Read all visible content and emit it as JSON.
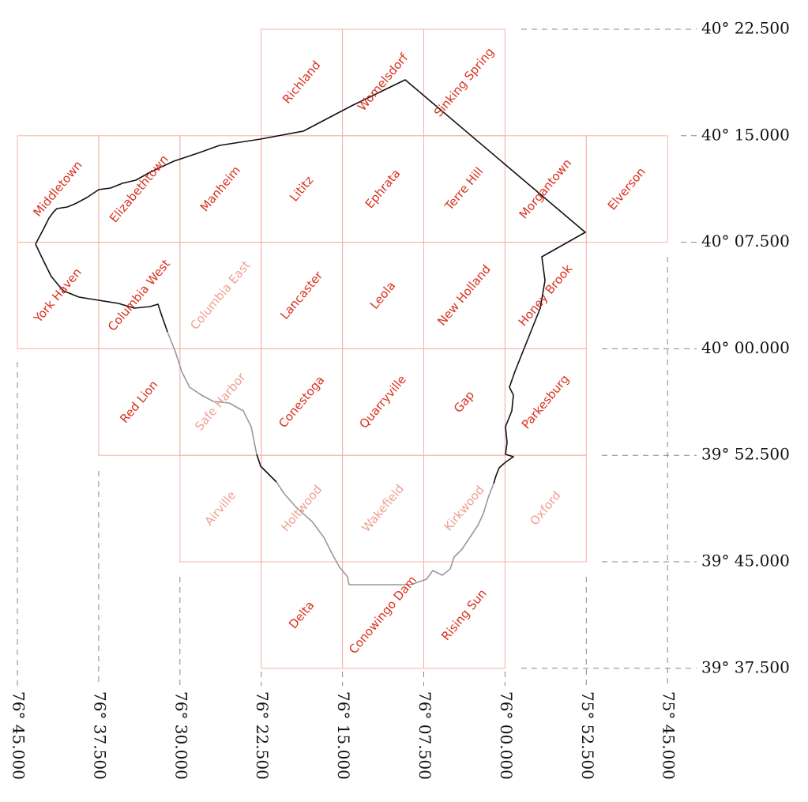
{
  "colors": {
    "grid": "#f4b3aa",
    "label_strong": "#d9301e",
    "label_faded": "#eea093",
    "boundary": "#111111",
    "axis_text": "#111111"
  },
  "quadrangles": [
    {
      "name": "Richland",
      "col": 3,
      "row": 0,
      "faded": false
    },
    {
      "name": "Womelsdorf",
      "col": 4,
      "row": 0,
      "faded": false
    },
    {
      "name": "Sinking Spring",
      "col": 5,
      "row": 0,
      "faded": false
    },
    {
      "name": "Middletown",
      "col": 0,
      "row": 1,
      "faded": false
    },
    {
      "name": "Elizabethtown",
      "col": 1,
      "row": 1,
      "faded": false
    },
    {
      "name": "Manheim",
      "col": 2,
      "row": 1,
      "faded": false
    },
    {
      "name": "Lititz",
      "col": 3,
      "row": 1,
      "faded": false
    },
    {
      "name": "Ephrata",
      "col": 4,
      "row": 1,
      "faded": false
    },
    {
      "name": "Terre Hill",
      "col": 5,
      "row": 1,
      "faded": false
    },
    {
      "name": "Morgantown",
      "col": 6,
      "row": 1,
      "faded": false
    },
    {
      "name": "Elverson",
      "col": 7,
      "row": 1,
      "faded": false
    },
    {
      "name": "York Haven",
      "col": 0,
      "row": 2,
      "faded": false
    },
    {
      "name": "Columbia West",
      "col": 1,
      "row": 2,
      "faded": false
    },
    {
      "name": "Columbia East",
      "col": 2,
      "row": 2,
      "faded": true
    },
    {
      "name": "Lancaster",
      "col": 3,
      "row": 2,
      "faded": false
    },
    {
      "name": "Leola",
      "col": 4,
      "row": 2,
      "faded": false
    },
    {
      "name": "New Holland",
      "col": 5,
      "row": 2,
      "faded": false
    },
    {
      "name": "Honey Brook",
      "col": 6,
      "row": 2,
      "faded": false
    },
    {
      "name": "Red Lion",
      "col": 1,
      "row": 3,
      "faded": false
    },
    {
      "name": "Safe Harbor",
      "col": 2,
      "row": 3,
      "faded": true
    },
    {
      "name": "Conestoga",
      "col": 3,
      "row": 3,
      "faded": false
    },
    {
      "name": "Quarryville",
      "col": 4,
      "row": 3,
      "faded": false
    },
    {
      "name": "Gap",
      "col": 5,
      "row": 3,
      "faded": false
    },
    {
      "name": "Parkesburg",
      "col": 6,
      "row": 3,
      "faded": false
    },
    {
      "name": "Airville",
      "col": 2,
      "row": 4,
      "faded": true
    },
    {
      "name": "Holtwood",
      "col": 3,
      "row": 4,
      "faded": true
    },
    {
      "name": "Wakefield",
      "col": 4,
      "row": 4,
      "faded": true
    },
    {
      "name": "Kirkwood",
      "col": 5,
      "row": 4,
      "faded": true
    },
    {
      "name": "Oxford",
      "col": 6,
      "row": 4,
      "faded": true
    },
    {
      "name": "Delta",
      "col": 3,
      "row": 5,
      "faded": false
    },
    {
      "name": "Conowingo Dam",
      "col": 4,
      "row": 5,
      "faded": false
    },
    {
      "name": "Rising Sun",
      "col": 5,
      "row": 5,
      "faded": false
    }
  ],
  "latitude_labels": [
    {
      "text": "40° 22.500",
      "faded": false
    },
    {
      "text": "40° 15.000",
      "faded": false
    },
    {
      "text": "40° 07.500",
      "faded": false
    },
    {
      "text": "40° 00.000",
      "faded": false
    },
    {
      "text": "39° 52.500",
      "faded": false
    },
    {
      "text": "39° 45.000",
      "faded": true
    },
    {
      "text": "39° 37.500",
      "faded": false
    }
  ],
  "longitude_labels": [
    "76° 45.000",
    "76° 37.500",
    "76° 30.000",
    "76° 22.500",
    "76° 15.000",
    "76° 07.500",
    "76° 00.000",
    "75° 52.500",
    "75° 45.000"
  ]
}
